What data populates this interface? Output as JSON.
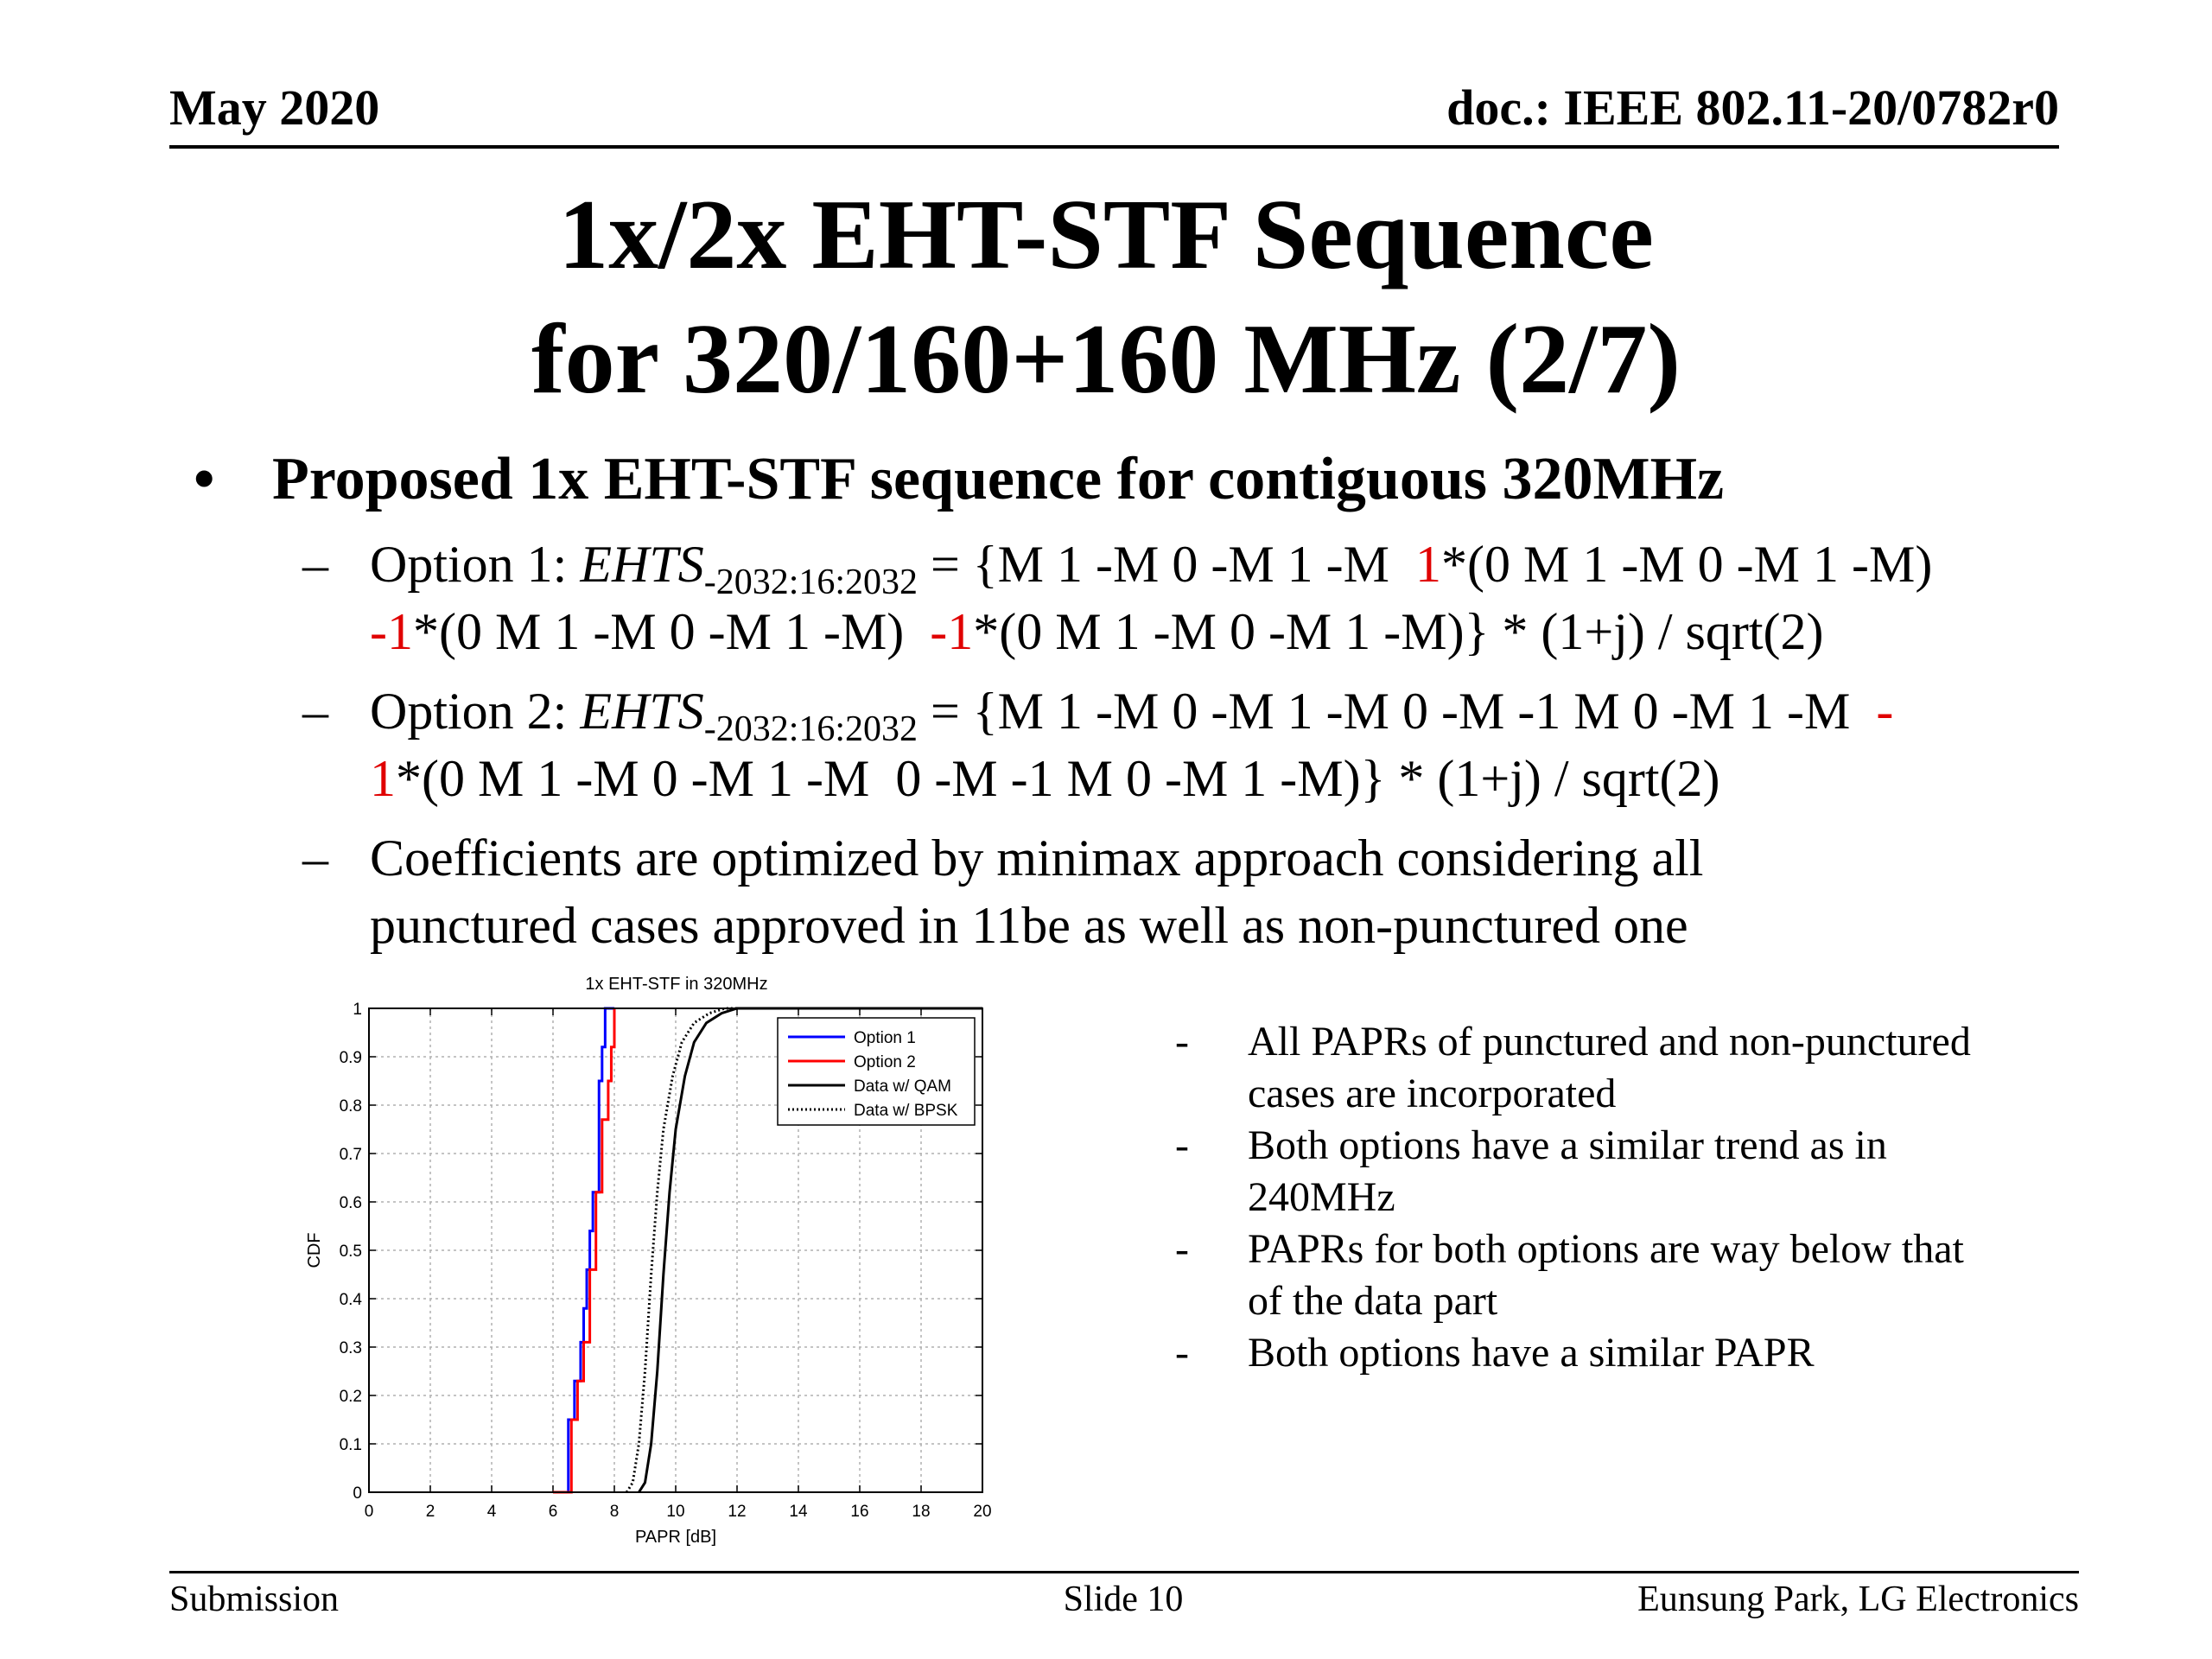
{
  "header": {
    "date": "May 2020",
    "doc": "doc.: IEEE 802.11-20/0782r0"
  },
  "title": {
    "line1": "1x/2x EHT-STF Sequence",
    "line2": "for 320/160+160 MHz (2/7)"
  },
  "bullet": {
    "symbol": "•",
    "text": "Proposed 1x EHT-STF sequence for contiguous 320MHz"
  },
  "options": {
    "dash": "–",
    "option1": {
      "prefix": "Option 1: ",
      "symbol": "EHTS",
      "subscript": "-2032:16:2032",
      "line1_rest": " = {M 1 -M 0 -M 1 -M  ",
      "red1": "1",
      "line1_end": "*(0 M 1 -M 0 -M 1 -M)",
      "red2": "-1",
      "line2_mid": "*(0 M 1 -M 0 -M 1 -M)  ",
      "red3": "-1",
      "line2_end": "*(0 M 1 -M 0 -M 1 -M)} * (1+j) / sqrt(2)"
    },
    "option2": {
      "prefix": "Option 2: ",
      "symbol": "EHTS",
      "subscript": "-2032:16:2032",
      "line1_rest": " = {M 1 -M 0 -M 1 -M 0 -M -1 M 0 -M 1 -M  ",
      "red1a": "-",
      "red1b": "1",
      "line2_end": "*(0 M 1 -M 0 -M 1 -M  0 -M -1 M 0 -M 1 -M)} * (1+j) / sqrt(2)"
    },
    "coeff": {
      "line1": "Coefficients are optimized by minimax approach considering all",
      "line2": "punctured cases approved in 11be as well as non-punctured one"
    }
  },
  "notes": {
    "dash": "-",
    "items": [
      {
        "line1": "All PAPRs of punctured and non-punctured",
        "line2": "cases are incorporated"
      },
      {
        "line1": "Both options have a similar trend as in",
        "line2": "240MHz"
      },
      {
        "line1": "PAPRs for both options are way below that",
        "line2": "of the data part"
      },
      {
        "line1": "Both options have a similar PAPR",
        "line2": ""
      }
    ]
  },
  "footer": {
    "left": "Submission",
    "center": "Slide 10",
    "right": "Eunsung Park, LG Electronics"
  },
  "chart_data": {
    "type": "line",
    "title": "1x EHT-STF in 320MHz",
    "xlabel": "PAPR [dB]",
    "ylabel": "CDF",
    "xlim": [
      0,
      20
    ],
    "ylim": [
      0,
      1
    ],
    "xticks": [
      0,
      2,
      4,
      6,
      8,
      10,
      12,
      14,
      16,
      18,
      20
    ],
    "yticks": [
      0,
      0.1,
      0.2,
      0.3,
      0.4,
      0.5,
      0.6,
      0.7,
      0.8,
      0.9,
      1
    ],
    "grid": true,
    "legend": "top-right",
    "series": [
      {
        "name": "Option 1",
        "color": "#0000ff",
        "style": "step",
        "x": [
          6.4,
          6.5,
          6.5,
          6.7,
          6.9,
          7.0,
          7.1,
          7.2,
          7.3,
          7.5,
          7.6,
          7.7,
          8.0
        ],
        "y": [
          0,
          0.08,
          0.15,
          0.23,
          0.31,
          0.38,
          0.46,
          0.54,
          0.62,
          0.85,
          0.92,
          1.0,
          1.0
        ]
      },
      {
        "name": "Option 2",
        "color": "#ff0000",
        "style": "step",
        "x": [
          6.0,
          6.6,
          6.8,
          7.0,
          7.2,
          7.4,
          7.6,
          7.8,
          7.9,
          8.0
        ],
        "y": [
          0,
          0.15,
          0.23,
          0.31,
          0.46,
          0.62,
          0.77,
          0.85,
          0.92,
          1.0
        ]
      },
      {
        "name": "Data w/ QAM",
        "color": "#000000",
        "style": "solid",
        "x": [
          8.8,
          9.0,
          9.2,
          9.4,
          9.6,
          9.8,
          10.0,
          10.3,
          10.6,
          11.0,
          11.5,
          12.0,
          12.5,
          20.0
        ],
        "y": [
          0.0,
          0.02,
          0.1,
          0.25,
          0.45,
          0.62,
          0.75,
          0.86,
          0.93,
          0.97,
          0.99,
          1.0,
          1.0,
          1.0
        ]
      },
      {
        "name": "Data w/ BPSK",
        "color": "#000000",
        "style": "dotted",
        "x": [
          8.4,
          8.6,
          8.8,
          9.0,
          9.2,
          9.4,
          9.6,
          9.9,
          10.2,
          10.6,
          11.1,
          11.6,
          12.1,
          20.0
        ],
        "y": [
          0.0,
          0.02,
          0.1,
          0.25,
          0.45,
          0.62,
          0.75,
          0.86,
          0.93,
          0.97,
          0.99,
          1.0,
          1.0,
          1.0
        ]
      }
    ]
  }
}
